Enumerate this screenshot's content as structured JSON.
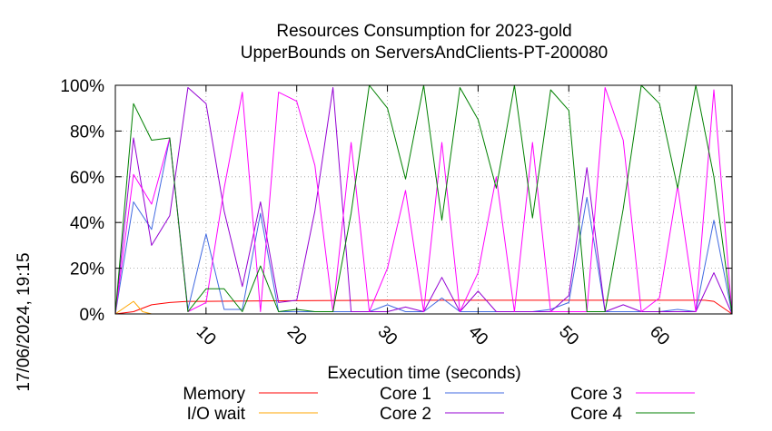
{
  "chart_data": {
    "type": "line",
    "title": "Resources Consumption for 2023-gold",
    "subtitle": "UpperBounds on ServersAndClients-PT-200080",
    "xlabel": "Execution time (seconds)",
    "ylabel": "",
    "side_label": "17/06/2024, 19:15",
    "xlim": [
      0,
      68
    ],
    "ylim": [
      0,
      100
    ],
    "x_ticks": [
      10,
      20,
      30,
      40,
      50,
      60
    ],
    "y_ticks": [
      0,
      20,
      40,
      60,
      80,
      100
    ],
    "y_tick_labels": [
      "0%",
      "20%",
      "40%",
      "60%",
      "80%",
      "100%"
    ],
    "grid": true,
    "legend_position": "bottom",
    "series": [
      {
        "name": "Memory",
        "color": "#ff0000",
        "x": [
          0,
          2,
          4,
          6,
          8,
          10,
          20,
          30,
          40,
          50,
          60,
          65,
          66,
          68
        ],
        "values": [
          0,
          1,
          4,
          5,
          5.5,
          5.5,
          5.8,
          6,
          6,
          6,
          6,
          6,
          5.5,
          0
        ]
      },
      {
        "name": "I/O wait",
        "color": "#ffa500",
        "x": [
          0,
          2,
          3,
          4,
          68
        ],
        "values": [
          0,
          5.5,
          1,
          0,
          0
        ]
      },
      {
        "name": "Core 1",
        "color": "#4169e1",
        "x": [
          0,
          2,
          4,
          6,
          8,
          10,
          12,
          14,
          16,
          18,
          20,
          22,
          24,
          26,
          28,
          30,
          32,
          34,
          36,
          38,
          40,
          42,
          44,
          46,
          48,
          50,
          52,
          54,
          56,
          58,
          60,
          62,
          64,
          66,
          68
        ],
        "values": [
          0,
          49,
          37,
          77,
          2,
          35,
          2,
          2,
          44,
          1,
          1,
          1,
          1,
          1,
          1,
          4,
          1,
          1,
          7,
          1,
          1,
          1,
          1,
          1,
          2,
          5,
          51,
          1,
          1,
          1,
          1,
          2,
          1,
          41,
          0
        ]
      },
      {
        "name": "Core 2",
        "color": "#9400d3",
        "x": [
          0,
          2,
          4,
          6,
          8,
          10,
          12,
          14,
          16,
          18,
          20,
          22,
          24,
          26,
          28,
          30,
          32,
          34,
          36,
          38,
          40,
          42,
          44,
          46,
          48,
          50,
          52,
          54,
          56,
          58,
          60,
          62,
          64,
          66,
          68
        ],
        "values": [
          0,
          77,
          30,
          43,
          99,
          92,
          45,
          12,
          49,
          5,
          6,
          45,
          99,
          1,
          1,
          1,
          3,
          1,
          16,
          1,
          10,
          1,
          1,
          1,
          1,
          8,
          64,
          1,
          4,
          1,
          1,
          1,
          1,
          18,
          0
        ]
      },
      {
        "name": "Core 3",
        "color": "#ff00ff",
        "x": [
          0,
          2,
          4,
          6,
          8,
          10,
          12,
          14,
          16,
          18,
          20,
          22,
          24,
          26,
          28,
          30,
          32,
          34,
          36,
          38,
          40,
          42,
          44,
          46,
          48,
          50,
          52,
          54,
          56,
          58,
          60,
          62,
          64,
          66,
          68
        ],
        "values": [
          0,
          61,
          48,
          77,
          1,
          5,
          55,
          97,
          1,
          97,
          93,
          65,
          1,
          75,
          1,
          20,
          54,
          1,
          75,
          1,
          18,
          60,
          1,
          75,
          1,
          1,
          1,
          99,
          76,
          1,
          7,
          56,
          1,
          98,
          0
        ]
      },
      {
        "name": "Core 4",
        "color": "#008000",
        "x": [
          0,
          2,
          4,
          6,
          8,
          10,
          12,
          14,
          16,
          18,
          20,
          22,
          24,
          26,
          28,
          30,
          32,
          34,
          36,
          38,
          40,
          42,
          44,
          46,
          48,
          50,
          52,
          54,
          56,
          58,
          60,
          62,
          64,
          66,
          68
        ],
        "values": [
          0,
          92,
          76,
          77,
          1,
          11,
          11,
          1,
          21,
          1,
          2,
          1,
          1,
          44,
          100,
          90,
          59,
          100,
          41,
          99,
          85,
          55,
          100,
          42,
          98,
          89,
          1,
          1,
          46,
          100,
          92,
          55,
          100,
          60,
          0
        ]
      }
    ]
  }
}
